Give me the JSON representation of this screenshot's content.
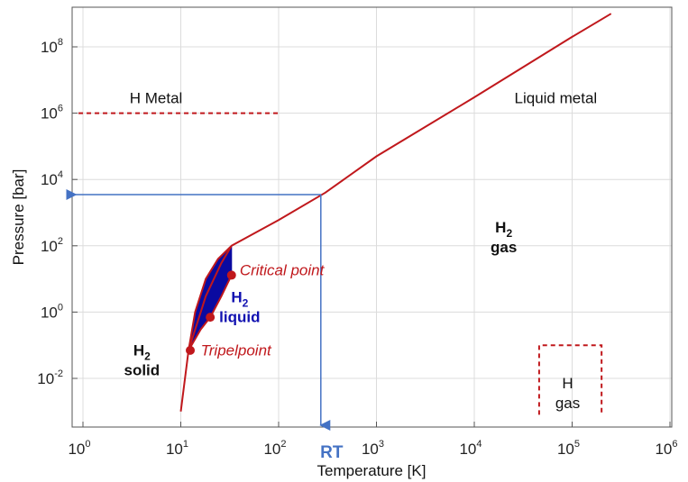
{
  "colors": {
    "phase_line": "#c0181c",
    "liquid_fill": "#0a0aa0",
    "rt_line": "#4472c4",
    "rt_label": "#4472c4",
    "liquid_label": "#1010b0",
    "grid": "#dcdcdc"
  },
  "chart_data": {
    "type": "line",
    "xlabel": "Temperature [K]",
    "ylabel": "Pressure [bar]",
    "xscale": "log",
    "yscale": "log",
    "xlim": [
      1,
      1000000
    ],
    "ylim": [
      0.0005,
      2000000000
    ],
    "grid": true,
    "x_ticks": [
      {
        "base": "10",
        "exp": "0",
        "value": 1
      },
      {
        "base": "10",
        "exp": "1",
        "value": 10
      },
      {
        "base": "10",
        "exp": "2",
        "value": 100
      },
      {
        "base": "10",
        "exp": "3",
        "value": 1000
      },
      {
        "base": "10",
        "exp": "4",
        "value": 10000
      },
      {
        "base": "10",
        "exp": "5",
        "value": 100000
      },
      {
        "base": "10",
        "exp": "6",
        "value": 1000000
      }
    ],
    "y_ticks": [
      {
        "base": "10",
        "exp": "-2",
        "value": 0.01
      },
      {
        "base": "10",
        "exp": "0",
        "value": 1
      },
      {
        "base": "10",
        "exp": "2",
        "value": 100
      },
      {
        "base": "10",
        "exp": "4",
        "value": 10000
      },
      {
        "base": "10",
        "exp": "6",
        "value": 1000000
      },
      {
        "base": "10",
        "exp": "8",
        "value": 100000000
      }
    ],
    "series": [
      {
        "type": "line",
        "points": [
          [
            10,
            0.001
          ],
          [
            12,
            0.07
          ],
          [
            18,
            3
          ],
          [
            26,
            30
          ],
          [
            33,
            100
          ],
          [
            100,
            600
          ],
          [
            300,
            4000
          ],
          [
            1000,
            50000
          ],
          [
            10000,
            3000000
          ],
          [
            100000,
            200000000
          ],
          [
            250000,
            1000000000
          ]
        ]
      },
      {
        "type": "line",
        "points": [
          [
            12,
            0.07
          ],
          [
            16,
            0.3
          ],
          [
            20,
            0.7
          ],
          [
            26,
            3
          ],
          [
            33,
            13
          ]
        ]
      },
      {
        "type": "area",
        "upper": [
          [
            12,
            0.07
          ],
          [
            14,
            1
          ],
          [
            18,
            10
          ],
          [
            24,
            40
          ],
          [
            33,
            100
          ]
        ],
        "lower": [
          [
            12,
            0.07
          ],
          [
            16,
            0.3
          ],
          [
            20,
            0.7
          ],
          [
            26,
            3
          ],
          [
            33,
            13
          ],
          [
            33,
            100
          ]
        ]
      }
    ],
    "points": [
      {
        "name": "Tripelpoint",
        "x": 12.5,
        "y": 0.07
      },
      {
        "name": "Critical point",
        "x": 33,
        "y": 13
      },
      {
        "name": "liquid-point",
        "x": 20,
        "y": 0.7
      }
    ],
    "boundaries": [
      {
        "type": "dashed-h",
        "x1": 0.9,
        "x2": 100,
        "y": 1000000
      },
      {
        "type": "dashed-box",
        "x1": 46000,
        "x2": 200000,
        "y1": 0.0008,
        "y2": 0.1
      }
    ],
    "room_temperature": {
      "x": 270,
      "y": 3500,
      "label": "RT"
    },
    "annotations": [
      {
        "key": "h_metal",
        "lines": [
          "H Metal"
        ],
        "x": 3,
        "y": 2000000,
        "style": "normal"
      },
      {
        "key": "liquid_metal",
        "lines": [
          "Liquid metal"
        ],
        "x": 180000,
        "y": 2000000,
        "style": "normal"
      },
      {
        "key": "h2_gas",
        "lines": [
          "H",
          "gas"
        ],
        "sub": "2",
        "x": 20000,
        "y": 250,
        "style": "bold"
      },
      {
        "key": "h2_liquid",
        "lines": [
          "H",
          "liquid"
        ],
        "sub": "2",
        "x": 40,
        "y": 2,
        "style": "bold-blue"
      },
      {
        "key": "h2_solid",
        "lines": [
          "H",
          "solid"
        ],
        "sub": "2",
        "x": 4,
        "y": 0.05,
        "style": "bold"
      },
      {
        "key": "h_gas",
        "lines": [
          "H",
          "gas"
        ],
        "x": 90000,
        "y": 0.005,
        "style": "normal"
      },
      {
        "key": "critical_point",
        "lines": [
          "Critical point"
        ],
        "x": 40,
        "y": 13,
        "style": "italic-red"
      },
      {
        "key": "tripelpoint",
        "lines": [
          "Tripelpoint"
        ],
        "x": 16,
        "y": 0.05,
        "style": "italic-red"
      }
    ]
  }
}
